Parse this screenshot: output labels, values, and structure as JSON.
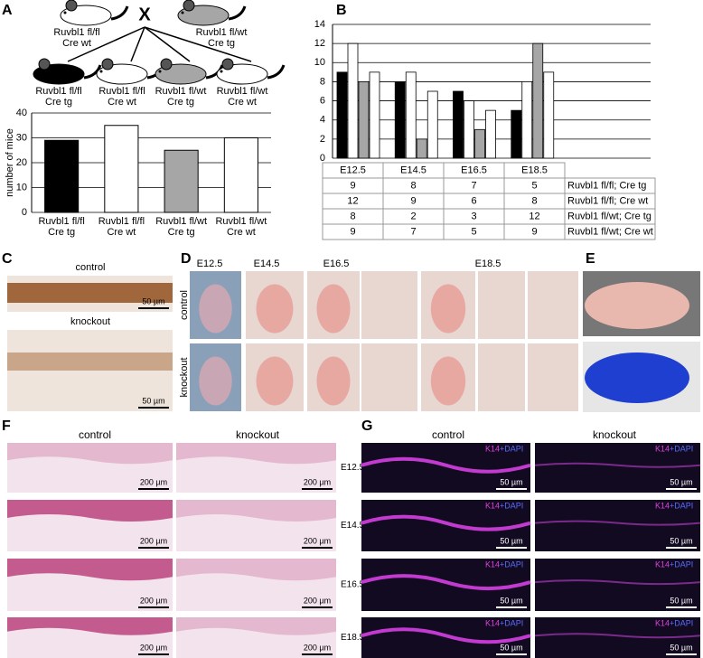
{
  "chart_data": [
    {
      "type": "bar",
      "y_label": "number of mice",
      "categories": [
        "Ruvbl1 fl/fl\nCre tg",
        "Ruvbl1 fl/fl\nCre wt",
        "Ruvbl1 fl/wt\nCre tg",
        "Ruvbl1 fl/wt\nCre wt"
      ],
      "values": [
        29,
        35,
        25,
        30
      ],
      "colors": [
        "#000000",
        "#ffffff",
        "#a6a6a6",
        "#ffffff"
      ],
      "ylim": [
        0,
        40
      ],
      "yticks": [
        0,
        10,
        20,
        30,
        40
      ],
      "grid": true
    },
    {
      "type": "grouped-bar-table",
      "categories": [
        "E12.5",
        "E14.5",
        "E16.5",
        "E18.5"
      ],
      "series": [
        {
          "name": "Ruvbl1 fl/fl; Cre tg",
          "color": "#000000",
          "values": [
            9,
            8,
            7,
            5
          ]
        },
        {
          "name": "Ruvbl1 fl/fl; Cre wt",
          "color": "#ffffff",
          "values": [
            12,
            9,
            6,
            8
          ]
        },
        {
          "name": "Ruvbl1 fl/wt; Cre tg",
          "color": "#a6a6a6",
          "values": [
            8,
            2,
            3,
            12
          ]
        },
        {
          "name": "Ruvbl1 fl/wt; Cre wt",
          "color": "#ffffff",
          "values": [
            9,
            7,
            5,
            9
          ]
        }
      ],
      "ylim": [
        0,
        14
      ],
      "yticks": [
        0,
        2,
        4,
        6,
        8,
        10,
        12,
        14
      ],
      "grid": true
    }
  ],
  "figure": {
    "panel_labels": [
      "A",
      "B",
      "C",
      "D",
      "E",
      "F",
      "G"
    ],
    "cross": {
      "symbol": "X",
      "parents": [
        "Ruvbl1 fl/fl\nCre wt",
        "Ruvbl1 fl/wt\nCre tg"
      ],
      "offspring": [
        "Ruvbl1 fl/fl\nCre tg",
        "Ruvbl1 fl/fl\nCre wt",
        "Ruvbl1 fl/wt\nCre tg",
        "Ruvbl1 fl/wt\nCre wt"
      ]
    },
    "panel_c": {
      "conditions": [
        "control",
        "knockout"
      ],
      "scale_bars": [
        "50 µm",
        "50 µm"
      ]
    },
    "panel_d": {
      "stages": [
        "E12.5",
        "E14.5",
        "E16.5",
        "E18.5"
      ],
      "conditions": [
        "control",
        "knockout"
      ]
    },
    "panel_f": {
      "conditions": [
        "control",
        "knockout"
      ],
      "stages": [
        "E12.5",
        "E14.5",
        "E16.5",
        "E18.5"
      ],
      "scale_bars": [
        "200 µm",
        "200 µm",
        "200 µm",
        "200 µm",
        "200 µm",
        "200 µm",
        "200 µm",
        "200 µm"
      ]
    },
    "panel_g": {
      "conditions": [
        "control",
        "knockout"
      ],
      "stain_k14": [
        "K14",
        "K14",
        "K14",
        "K14",
        "K14",
        "K14",
        "K14",
        "K14"
      ],
      "stain_dapi": [
        "+DAPI",
        "+DAPI",
        "+DAPI",
        "+DAPI",
        "+DAPI",
        "+DAPI",
        "+DAPI",
        "+DAPI"
      ],
      "scale_bars": [
        "50 µm",
        "50 µm",
        "50 µm",
        "50 µm",
        "50 µm",
        "50 µm",
        "50 µm",
        "50 µm"
      ]
    }
  }
}
